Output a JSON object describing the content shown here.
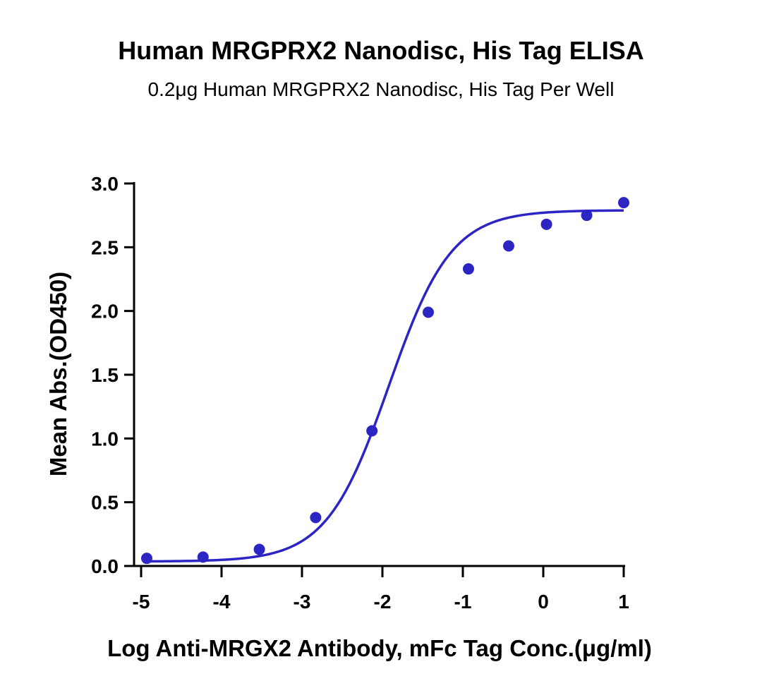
{
  "chart_data": {
    "type": "scatter",
    "title": "Human MRGPRX2 Nanodisc, His Tag ELISA",
    "subtitle": "0.2μg Human MRGPRX2 Nanodisc, His Tag Per Well",
    "xlabel": "Log Anti-MRGX2 Antibody, mFc Tag Conc.(μg/ml)",
    "ylabel": "Mean Abs.(OD450)",
    "xlim": [
      -5,
      1
    ],
    "ylim": [
      0,
      3.0
    ],
    "x_ticks": [
      "-5",
      "-4",
      "-3",
      "-2",
      "-1",
      "0",
      "1"
    ],
    "y_ticks": [
      "0.0",
      "0.5",
      "1.0",
      "1.5",
      "2.0",
      "2.5",
      "3.0"
    ],
    "grid": false,
    "series": [
      {
        "color": "#2d24c4",
        "points": [
          {
            "x": -4.93,
            "y": 0.06
          },
          {
            "x": -4.23,
            "y": 0.07
          },
          {
            "x": -3.53,
            "y": 0.13
          },
          {
            "x": -2.83,
            "y": 0.38
          },
          {
            "x": -2.13,
            "y": 1.06
          },
          {
            "x": -1.43,
            "y": 1.99
          },
          {
            "x": -0.93,
            "y": 2.33
          },
          {
            "x": -0.43,
            "y": 2.51
          },
          {
            "x": 0.04,
            "y": 2.68
          },
          {
            "x": 0.54,
            "y": 2.75
          },
          {
            "x": 1.0,
            "y": 2.85
          }
        ],
        "fit": {
          "model": "4PL",
          "bottom": 0.035,
          "top": 2.79,
          "logEC50": -1.92,
          "hill": 1.12
        }
      }
    ]
  }
}
